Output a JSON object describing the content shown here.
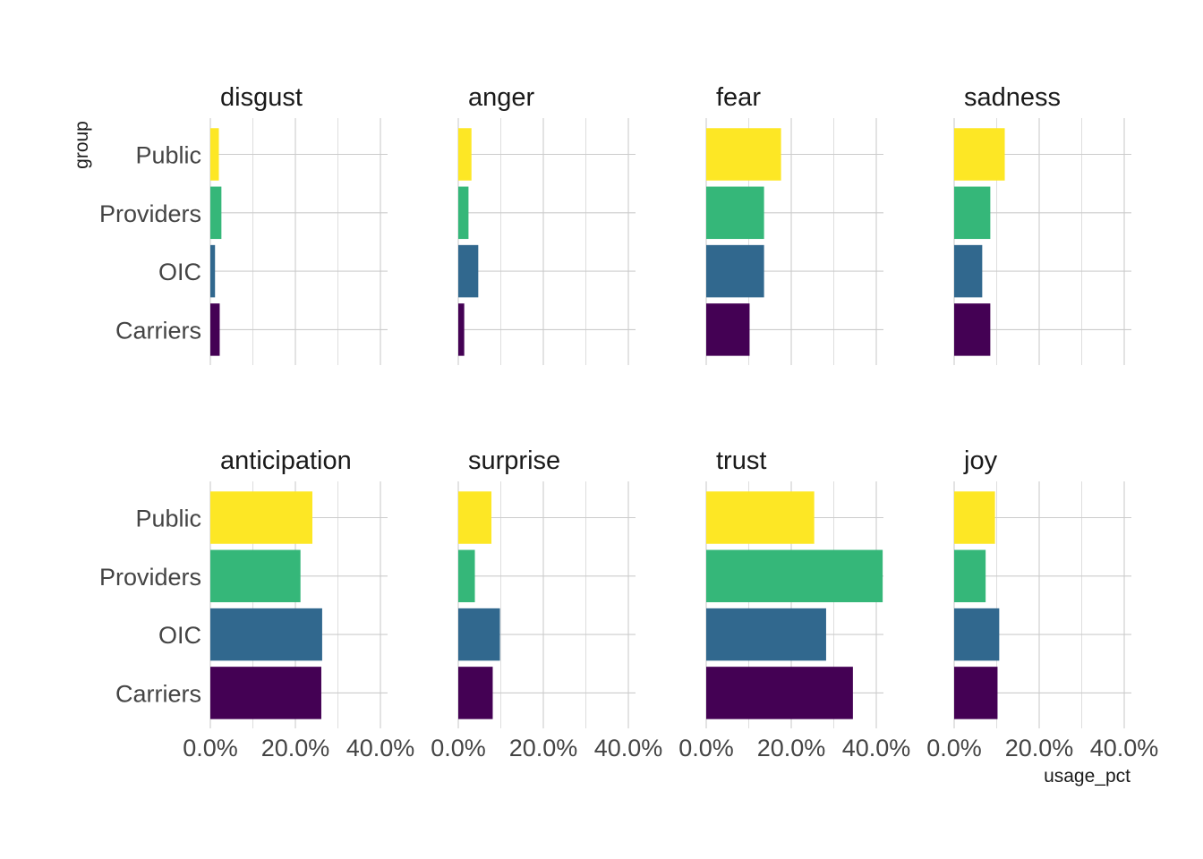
{
  "chart_data": {
    "type": "bar",
    "orientation": "horizontal",
    "xlabel": "usage_pct",
    "ylabel": "group",
    "categories": [
      "Public",
      "Providers",
      "OIC",
      "Carriers"
    ],
    "x_ticks": [
      0,
      20,
      40
    ],
    "x_tick_labels": [
      "0.0%",
      "20.0%",
      "40.0%"
    ],
    "xlim": [
      0,
      42
    ],
    "grid": true,
    "legend": "none",
    "colors": {
      "Public": "#fde725",
      "Providers": "#35b779",
      "OIC": "#31688e",
      "Carriers": "#440154"
    },
    "facets": [
      {
        "title": "disgust",
        "values": {
          "Public": 2.0,
          "Providers": 2.6,
          "OIC": 1.1,
          "Carriers": 2.2
        }
      },
      {
        "title": "anger",
        "values": {
          "Public": 3.1,
          "Providers": 2.4,
          "OIC": 4.7,
          "Carriers": 1.4
        }
      },
      {
        "title": "fear",
        "values": {
          "Public": 17.6,
          "Providers": 13.6,
          "OIC": 13.6,
          "Carriers": 10.2
        }
      },
      {
        "title": "sadness",
        "values": {
          "Public": 11.9,
          "Providers": 8.5,
          "OIC": 6.6,
          "Carriers": 8.5
        }
      },
      {
        "title": "anticipation",
        "values": {
          "Public": 24.0,
          "Providers": 21.2,
          "OIC": 26.3,
          "Carriers": 26.1
        }
      },
      {
        "title": "surprise",
        "values": {
          "Public": 7.8,
          "Providers": 3.9,
          "OIC": 9.8,
          "Carriers": 8.1
        }
      },
      {
        "title": "trust",
        "values": {
          "Public": 25.4,
          "Providers": 41.5,
          "OIC": 28.2,
          "Carriers": 34.5
        }
      },
      {
        "title": "joy",
        "values": {
          "Public": 9.6,
          "Providers": 7.4,
          "OIC": 10.6,
          "Carriers": 10.2
        }
      }
    ]
  }
}
